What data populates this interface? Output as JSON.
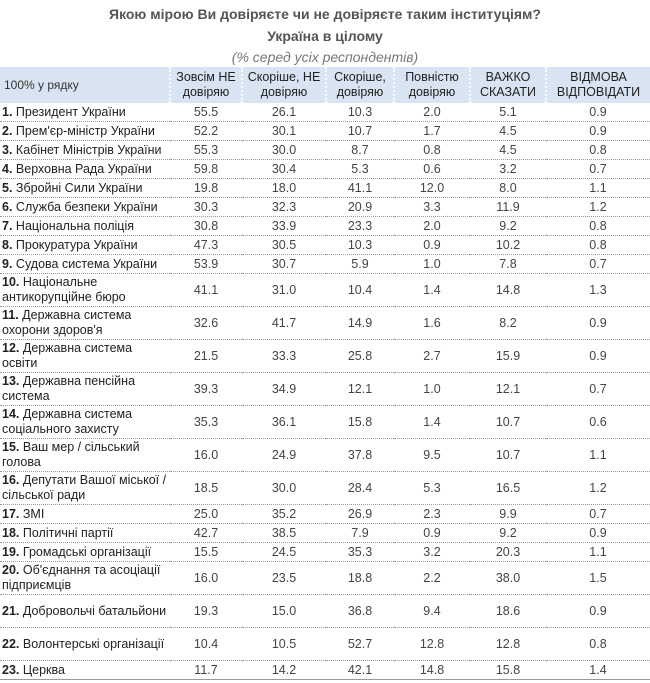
{
  "header": {
    "title": "Якою мірою Ви довіряєте чи не довіряєте таким інституціям?",
    "subtitle": "Україна в цілому",
    "note": "(% серед усіх респондентів)"
  },
  "table": {
    "columns": [
      "100% у рядку",
      "Зовсім НЕ довіряю",
      "Скоріше, НЕ довіряю",
      "Скоріше, довіряю",
      "Повністю довіряю",
      "ВАЖКО СКАЗАТИ",
      "ВІДМОВА ВІДПОВІДАТИ"
    ],
    "rows": [
      {
        "num": "1.",
        "label": "Президент України",
        "values": [
          "55.5",
          "26.1",
          "10.3",
          "2.0",
          "5.1",
          "0.9"
        ]
      },
      {
        "num": "2.",
        "label": "Прем'єр-міністр України",
        "values": [
          "52.2",
          "30.1",
          "10.7",
          "1.7",
          "4.5",
          "0.9"
        ]
      },
      {
        "num": "3.",
        "label": "Кабінет Міністрів України",
        "values": [
          "55.3",
          "30.0",
          "8.7",
          "0.8",
          "4.5",
          "0.8"
        ]
      },
      {
        "num": "4.",
        "label": "Верховна Рада України",
        "values": [
          "59.8",
          "30.4",
          "5.3",
          "0.6",
          "3.2",
          "0.7"
        ]
      },
      {
        "num": "5.",
        "label": "Збройні Сили України",
        "values": [
          "19.8",
          "18.0",
          "41.1",
          "12.0",
          "8.0",
          "1.1"
        ]
      },
      {
        "num": "6.",
        "label": "Служба безпеки України",
        "values": [
          "30.3",
          "32.3",
          "20.9",
          "3.3",
          "11.9",
          "1.2"
        ]
      },
      {
        "num": "7.",
        "label": "Національна поліція",
        "values": [
          "30.8",
          "33.9",
          "23.3",
          "2.0",
          "9.2",
          "0.8"
        ]
      },
      {
        "num": "8.",
        "label": "Прокуратура України",
        "values": [
          "47.3",
          "30.5",
          "10.3",
          "0.9",
          "10.2",
          "0.8"
        ]
      },
      {
        "num": "9.",
        "label": "Судова система України",
        "values": [
          "53.9",
          "30.7",
          "5.9",
          "1.0",
          "7.8",
          "0.7"
        ]
      },
      {
        "num": "10.",
        "label": "Національне антикорупційне бюро",
        "values": [
          "41.1",
          "31.0",
          "10.4",
          "1.4",
          "14.8",
          "1.3"
        ],
        "two": true
      },
      {
        "num": "11.",
        "label": "Державна система охорони здоров'я",
        "values": [
          "32.6",
          "41.7",
          "14.9",
          "1.6",
          "8.2",
          "0.9"
        ],
        "two": true
      },
      {
        "num": "12.",
        "label": "Державна система освіти",
        "values": [
          "21.5",
          "33.3",
          "25.8",
          "2.7",
          "15.9",
          "0.9"
        ],
        "two": true
      },
      {
        "num": "13.",
        "label": "Державна пенсійна система",
        "values": [
          "39.3",
          "34.9",
          "12.1",
          "1.0",
          "12.1",
          "0.7"
        ],
        "two": true
      },
      {
        "num": "14.",
        "label": "Державна система соціального захисту",
        "values": [
          "35.3",
          "36.1",
          "15.8",
          "1.4",
          "10.7",
          "0.6"
        ],
        "two": true
      },
      {
        "num": "15.",
        "label": "Ваш мер / сільський голова",
        "values": [
          "16.0",
          "24.9",
          "37.8",
          "9.5",
          "10.7",
          "1.1"
        ],
        "two": true
      },
      {
        "num": "16.",
        "label": "Депутати Вашої міської / сільської ради",
        "values": [
          "18.5",
          "30.0",
          "28.4",
          "5.3",
          "16.5",
          "1.2"
        ],
        "two": true
      },
      {
        "num": "17.",
        "label": "ЗМІ",
        "values": [
          "25.0",
          "35.2",
          "26.9",
          "2.3",
          "9.9",
          "0.7"
        ]
      },
      {
        "num": "18.",
        "label": "Політичні партії",
        "values": [
          "42.7",
          "38.5",
          "7.9",
          "0.9",
          "9.2",
          "0.9"
        ]
      },
      {
        "num": "19.",
        "label": "Громадські організації",
        "values": [
          "15.5",
          "24.5",
          "35.3",
          "3.2",
          "20.3",
          "1.1"
        ]
      },
      {
        "num": "20.",
        "label": "Об'єднання та асоціації підприємців",
        "values": [
          "16.0",
          "23.5",
          "18.8",
          "2.2",
          "38.0",
          "1.5"
        ],
        "two": true
      },
      {
        "num": "21.",
        "label": "Добровольчі батальйони",
        "values": [
          "19.3",
          "15.0",
          "36.8",
          "9.4",
          "18.6",
          "0.9"
        ],
        "two": true
      },
      {
        "num": "22.",
        "label": "Волонтерські організації",
        "values": [
          "10.4",
          "10.5",
          "52.7",
          "12.8",
          "12.8",
          "0.8"
        ],
        "two": true
      },
      {
        "num": "23.",
        "label": "Церква",
        "values": [
          "11.7",
          "14.2",
          "42.1",
          "14.8",
          "15.8",
          "1.4"
        ]
      }
    ]
  },
  "colors": {
    "header_bg": "#d8e4f1",
    "row_border": "#9a9a9a",
    "title_text": "#555555"
  }
}
